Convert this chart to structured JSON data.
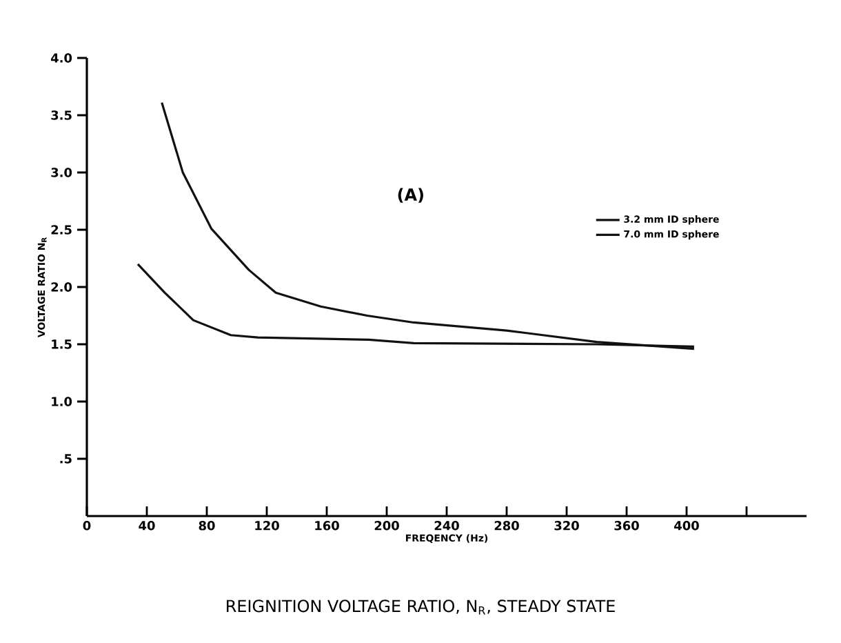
{
  "chart_data": {
    "type": "line",
    "title": "REIGNITION VOLTAGE RATIO, N$_{R}$, STEADY STATE",
    "xlabel": "FREQENCY (Hz)",
    "ylabel": "VOLTAGE RATIO N$_{R}$",
    "annotations": [
      "(A)"
    ],
    "xlim": [
      0,
      480
    ],
    "xticks": [
      0,
      40,
      80,
      120,
      160,
      200,
      240,
      280,
      320,
      360,
      400,
      {
        "value": 440,
        "label": null
      }
    ],
    "ylim": [
      0,
      4
    ],
    "yticks": [
      {
        "value": 0.5,
        "label": ".5"
      },
      {
        "value": 1,
        "label": "1.0"
      },
      {
        "value": 1.5,
        "label": "1.5"
      },
      {
        "value": 2,
        "label": "2.0"
      },
      {
        "value": 2.5,
        "label": "2.5"
      },
      {
        "value": 3,
        "label": "3.0"
      },
      {
        "value": 3.5,
        "label": "3.5"
      },
      {
        "value": 4,
        "label": "4.0"
      }
    ],
    "legend": "right",
    "grid": false,
    "marker": "none",
    "line_style": "solid",
    "series": [
      {
        "name": "3.2 mm ID sphere",
        "color": "#111111",
        "x": [
          50,
          64,
          83,
          108,
          126,
          156,
          187,
          218,
          280,
          340,
          405
        ],
        "values": [
          3.61,
          3.0,
          2.51,
          2.15,
          1.95,
          1.83,
          1.75,
          1.69,
          1.62,
          1.52,
          1.46
        ]
      },
      {
        "name": "7.0 mm ID sphere",
        "color": "#111111",
        "x": [
          34,
          52,
          71,
          96,
          114,
          188,
          218,
          340,
          405
        ],
        "values": [
          2.2,
          1.95,
          1.71,
          1.58,
          1.56,
          1.54,
          1.51,
          1.5,
          1.48
        ]
      }
    ]
  }
}
